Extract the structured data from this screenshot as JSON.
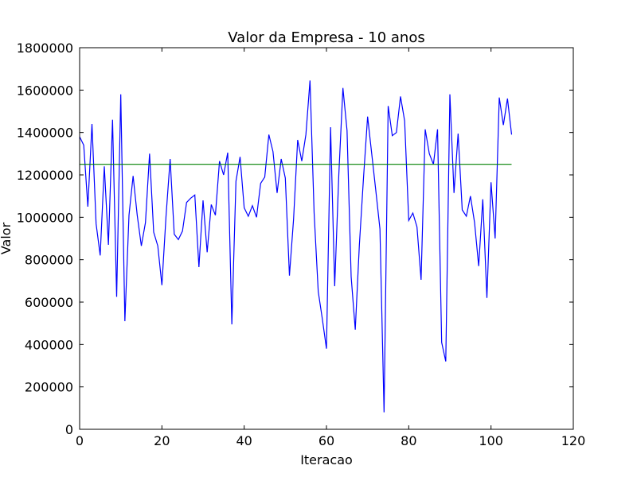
{
  "chart_data": {
    "type": "line",
    "title": "Valor da Empresa - 10 anos",
    "xlabel": "Iteracao",
    "ylabel": "Valor",
    "xlim": [
      0,
      120
    ],
    "ylim": [
      0,
      1800000
    ],
    "xticks": [
      0,
      20,
      40,
      60,
      80,
      100,
      120
    ],
    "yticks": [
      0,
      200000,
      400000,
      600000,
      800000,
      1000000,
      1200000,
      1400000,
      1600000,
      1800000
    ],
    "grid": false,
    "series": [
      {
        "color": "#0000ff",
        "x": [
          0,
          1,
          2,
          3,
          4,
          5,
          6,
          7,
          8,
          9,
          10,
          11,
          12,
          13,
          14,
          15,
          16,
          17,
          18,
          19,
          20,
          21,
          22,
          23,
          24,
          25,
          26,
          27,
          28,
          29,
          30,
          31,
          32,
          33,
          34,
          35,
          36,
          37,
          38,
          39,
          40,
          41,
          42,
          43,
          44,
          45,
          46,
          47,
          48,
          49,
          50,
          51,
          52,
          53,
          54,
          55,
          56,
          57,
          58,
          59,
          60,
          61,
          62,
          63,
          64,
          65,
          66,
          67,
          68,
          69,
          70,
          71,
          72,
          73,
          74,
          75,
          76,
          77,
          78,
          79,
          80,
          81,
          82,
          83,
          84,
          85,
          86,
          87,
          88,
          89,
          90,
          91,
          92,
          93,
          94,
          95,
          96,
          97,
          98,
          99,
          100,
          101,
          102,
          103,
          104,
          105
        ],
        "values": [
          1380000,
          1340000,
          1050000,
          1440000,
          970000,
          820000,
          1240000,
          870000,
          1460000,
          625000,
          1580000,
          510000,
          1010000,
          1195000,
          1010000,
          865000,
          975000,
          1300000,
          930000,
          865000,
          680000,
          1005000,
          1275000,
          920000,
          895000,
          935000,
          1070000,
          1090000,
          1105000,
          765000,
          1080000,
          835000,
          1060000,
          1010000,
          1265000,
          1200000,
          1305000,
          495000,
          1170000,
          1285000,
          1045000,
          1005000,
          1055000,
          1000000,
          1160000,
          1190000,
          1390000,
          1310000,
          1115000,
          1275000,
          1185000,
          725000,
          990000,
          1365000,
          1265000,
          1390000,
          1645000,
          1020000,
          650000,
          520000,
          380000,
          1425000,
          675000,
          1200000,
          1610000,
          1410000,
          720000,
          470000,
          870000,
          1185000,
          1475000,
          1300000,
          1125000,
          945000,
          80000,
          1525000,
          1385000,
          1400000,
          1570000,
          1455000,
          985000,
          1020000,
          955000,
          705000,
          1415000,
          1300000,
          1250000,
          1415000,
          410000,
          320000,
          1580000,
          1115000,
          1395000,
          1035000,
          1005000,
          1100000,
          975000,
          770000,
          1085000,
          620000,
          1165000,
          900000,
          1565000,
          1435000,
          1560000,
          1390000
        ]
      },
      {
        "color": "#008000",
        "x": [
          0,
          105
        ],
        "values": [
          1250000,
          1250000
        ]
      }
    ]
  }
}
